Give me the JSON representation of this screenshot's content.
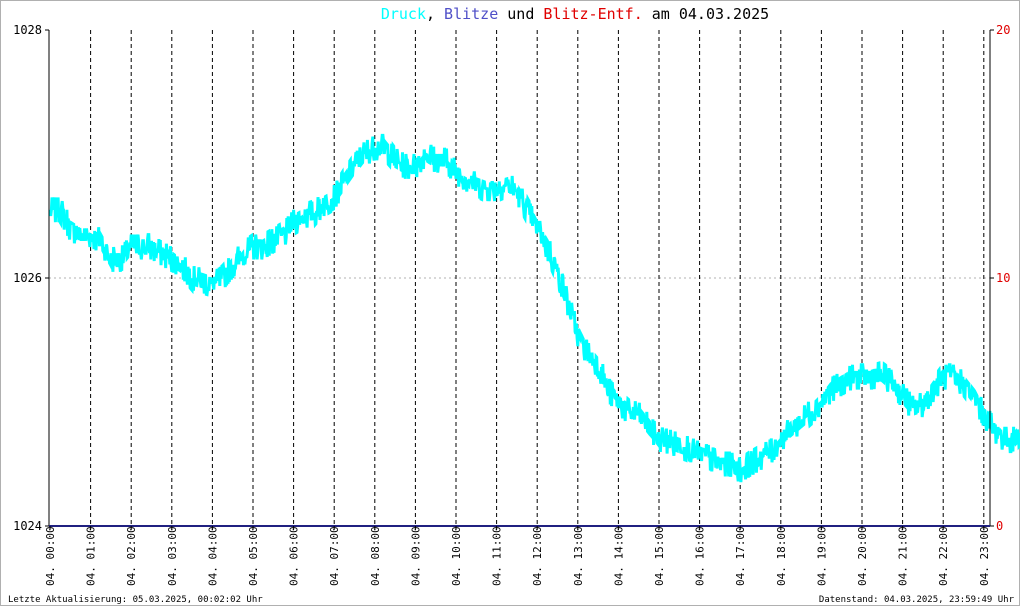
{
  "chart_data": {
    "type": "line",
    "title": {
      "druck": "Druck",
      "sep1": ",",
      "blitze": "Blitze",
      "und": "und",
      "entf": "Blitz-Entf.",
      "am": "am",
      "date": "04.03.2025"
    },
    "colors": {
      "druck": "#00ffff",
      "blitze": "#5050c8",
      "entf": "#e00000",
      "text": "#000000",
      "baseline": "#202080"
    },
    "y_left": {
      "min": 1024,
      "max": 1028,
      "ticks": [
        "1024",
        "1026",
        "1028"
      ]
    },
    "y_right": {
      "min": 0,
      "max": 20,
      "ticks": [
        "0",
        "10",
        "20"
      ]
    },
    "x_ticks": [
      "04. 00:00",
      "04. 01:00",
      "04. 02:00",
      "04. 03:00",
      "04. 04:00",
      "04. 05:00",
      "04. 06:00",
      "04. 07:00",
      "04. 08:00",
      "04. 09:00",
      "04. 10:00",
      "04. 11:00",
      "04. 12:00",
      "04. 13:00",
      "04. 14:00",
      "04. 15:00",
      "04. 16:00",
      "04. 17:00",
      "04. 18:00",
      "04. 19:00",
      "04. 20:00",
      "04. 21:00",
      "04. 22:00",
      "04. 23:00"
    ],
    "grid": {
      "vertical": "dashed",
      "horizontal": "dotted"
    },
    "series": [
      {
        "name": "Druck",
        "hours": [
          0,
          0.25,
          0.5,
          0.75,
          1,
          1.25,
          1.5,
          1.75,
          2,
          2.25,
          2.5,
          2.75,
          3,
          3.25,
          3.5,
          3.75,
          4,
          4.25,
          4.5,
          4.75,
          5,
          5.25,
          5.5,
          5.75,
          6,
          6.25,
          6.5,
          6.75,
          7,
          7.25,
          7.5,
          7.75,
          8,
          8.25,
          8.5,
          8.75,
          9,
          9.25,
          9.5,
          9.75,
          10,
          10.25,
          10.5,
          10.75,
          11,
          11.25,
          11.5,
          11.75,
          12,
          12.25,
          12.5,
          12.75,
          13,
          13.25,
          13.5,
          13.75,
          14,
          14.25,
          14.5,
          14.75,
          15,
          15.25,
          15.5,
          15.75,
          16,
          16.25,
          16.5,
          16.75,
          17,
          17.25,
          17.5,
          17.75,
          18,
          18.25,
          18.5,
          18.75,
          19,
          19.25,
          19.5,
          19.75,
          20,
          20.25,
          20.5,
          20.75,
          21,
          21.25,
          21.5,
          21.75,
          22,
          22.25,
          22.5,
          22.75,
          23,
          23.25,
          23.5,
          23.75,
          23.9
        ],
        "values": [
          1026.55,
          1026.55,
          1026.4,
          1026.35,
          1026.35,
          1026.3,
          1026.15,
          1026.15,
          1026.25,
          1026.25,
          1026.25,
          1026.2,
          1026.15,
          1026.1,
          1026.0,
          1025.98,
          1025.95,
          1026.0,
          1026.1,
          1026.2,
          1026.25,
          1026.25,
          1026.3,
          1026.35,
          1026.45,
          1026.5,
          1026.52,
          1026.6,
          1026.65,
          1026.78,
          1026.9,
          1027.0,
          1027.05,
          1027.05,
          1026.95,
          1026.9,
          1026.9,
          1027.0,
          1026.95,
          1026.95,
          1026.85,
          1026.8,
          1026.75,
          1026.72,
          1026.72,
          1026.75,
          1026.7,
          1026.55,
          1026.4,
          1026.25,
          1026.05,
          1025.8,
          1025.55,
          1025.38,
          1025.3,
          1025.1,
          1025.0,
          1024.92,
          1024.9,
          1024.8,
          1024.7,
          1024.68,
          1024.65,
          1024.62,
          1024.58,
          1024.55,
          1024.5,
          1024.5,
          1024.45,
          1024.5,
          1024.55,
          1024.6,
          1024.7,
          1024.78,
          1024.85,
          1024.92,
          1025.0,
          1025.1,
          1025.15,
          1025.2,
          1025.2,
          1025.2,
          1025.22,
          1025.15,
          1025.05,
          1024.95,
          1024.98,
          1025.1,
          1025.2,
          1025.2,
          1025.15,
          1025.05,
          1024.9,
          1024.78,
          1024.7,
          1024.7,
          1024.75
        ]
      }
    ],
    "footer": {
      "left": "Letzte Aktualisierung: 05.03.2025, 00:02:02 Uhr",
      "right": "Datenstand: 04.03.2025, 23:59:49 Uhr"
    }
  }
}
